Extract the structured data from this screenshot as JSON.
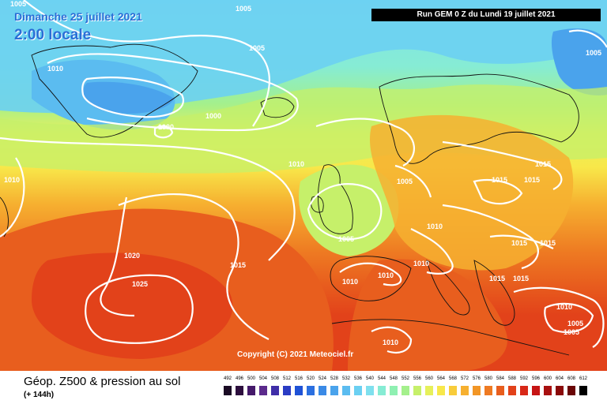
{
  "header": {
    "date": "Dimanche 25 juillet 2021",
    "local_time": "2:00 locale",
    "run_info": "Run GEM 0 Z du Lundi 19 juillet 2021"
  },
  "map": {
    "copyright": "Copyright (C) 2021 Meteociel.fr",
    "isobar_labels": [
      "1005",
      "1005",
      "1010",
      "1000",
      "1000",
      "1005",
      "1010",
      "1010",
      "1005",
      "1005",
      "1020",
      "1015",
      "1025",
      "1010",
      "1010",
      "1010",
      "1010",
      "1015",
      "1015",
      "1015",
      "1015",
      "1015",
      "1015",
      "1015",
      "1005",
      "1005",
      "1010",
      "1010",
      "1005"
    ]
  },
  "footer": {
    "title": "Géop. Z500 & pression au sol",
    "subtitle": "(+ 144h)"
  },
  "legend": {
    "values": [
      "492",
      "496",
      "500",
      "504",
      "508",
      "512",
      "516",
      "520",
      "524",
      "528",
      "532",
      "536",
      "540",
      "544",
      "548",
      "552",
      "556",
      "560",
      "564",
      "568",
      "572",
      "576",
      "580",
      "584",
      "588",
      "592",
      "596",
      "600",
      "604",
      "608",
      "612"
    ],
    "colors": [
      "#1a0a24",
      "#2d0f3e",
      "#451a6a",
      "#5b2a8c",
      "#3f2ea8",
      "#2a3cc4",
      "#1f52d6",
      "#2b6fe0",
      "#3a8ae6",
      "#4aa3ec",
      "#5bbcf0",
      "#6bd0f2",
      "#7fe0ee",
      "#86ecd4",
      "#8ff0b2",
      "#a4f08c",
      "#c6f06a",
      "#e6f05a",
      "#f8e84a",
      "#f8cc3a",
      "#f6b030",
      "#f29626",
      "#ee7a22",
      "#e85e1e",
      "#e2421a",
      "#d82818",
      "#c61414",
      "#a81010",
      "#8a0a0a",
      "#6a0606",
      "#000000"
    ]
  }
}
